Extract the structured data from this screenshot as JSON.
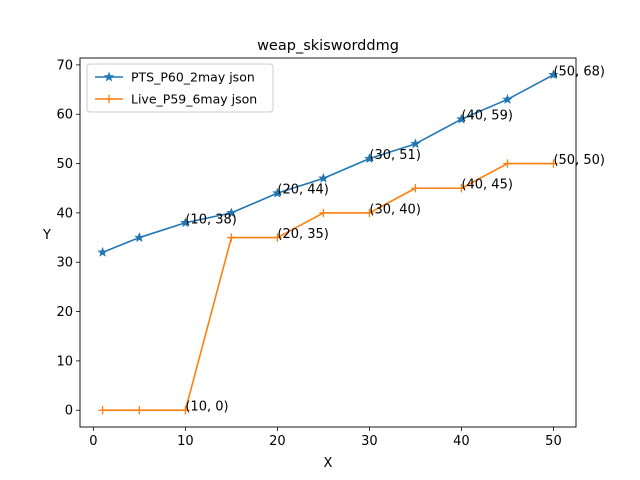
{
  "chart_data": {
    "type": "line",
    "title": "weap_skisworddmg",
    "xlabel": "X",
    "ylabel": "Y",
    "xlim": [
      -1.45,
      52.45
    ],
    "ylim": [
      -3.4,
      71.4
    ],
    "xticks": [
      0,
      10,
      20,
      30,
      40,
      50
    ],
    "yticks": [
      0,
      10,
      20,
      30,
      40,
      50,
      60,
      70
    ],
    "grid": false,
    "legend_position": "upper-left",
    "series": [
      {
        "name": "PTS_P60_2may json",
        "color": "#1f77b4",
        "marker": "star",
        "x": [
          1,
          5,
          10,
          15,
          20,
          25,
          30,
          35,
          40,
          45,
          50
        ],
        "y": [
          32,
          35,
          38,
          40,
          44,
          47,
          51,
          54,
          59,
          63,
          68
        ]
      },
      {
        "name": "Live_P59_6may json",
        "color": "#ff7f0e",
        "marker": "plus",
        "x": [
          1,
          5,
          10,
          15,
          20,
          25,
          30,
          35,
          40,
          45,
          50
        ],
        "y": [
          0,
          0,
          0,
          35,
          35,
          40,
          40,
          45,
          45,
          50,
          50
        ]
      }
    ],
    "annotations": [
      {
        "text": "(10, 38)",
        "x": 10,
        "y": 38
      },
      {
        "text": "(20, 44)",
        "x": 20,
        "y": 44
      },
      {
        "text": "(30, 51)",
        "x": 30,
        "y": 51
      },
      {
        "text": "(40, 59)",
        "x": 40,
        "y": 59
      },
      {
        "text": "(50, 68)",
        "x": 50,
        "y": 68
      },
      {
        "text": "(10, 0)",
        "x": 10,
        "y": 0
      },
      {
        "text": "(20, 35)",
        "x": 20,
        "y": 35
      },
      {
        "text": "(30, 40)",
        "x": 30,
        "y": 40
      },
      {
        "text": "(40, 45)",
        "x": 40,
        "y": 45
      },
      {
        "text": "(50, 50)",
        "x": 50,
        "y": 50
      }
    ]
  }
}
